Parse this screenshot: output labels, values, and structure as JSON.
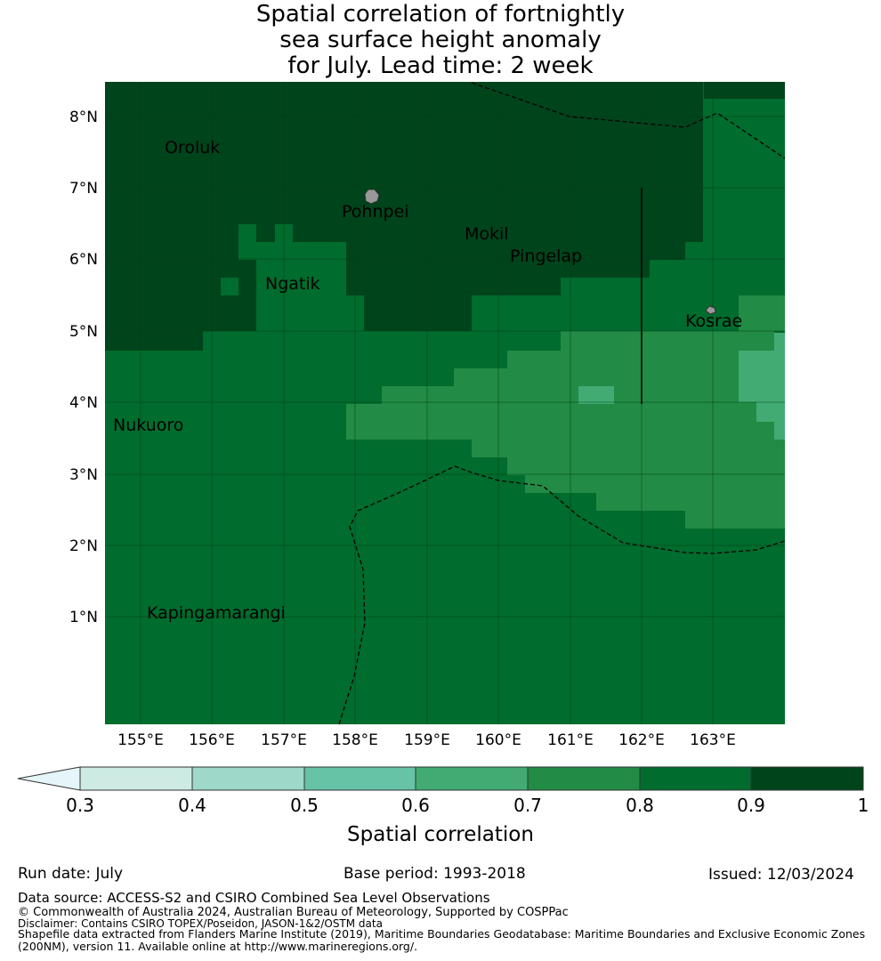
{
  "title": {
    "line1": "Spatial correlation of fortnightly",
    "line2": "sea surface height anomaly",
    "line3": "for July. Lead time: 2 week"
  },
  "map": {
    "lat_labels": [
      "8°N",
      "7°N",
      "6°N",
      "5°N",
      "4°N",
      "3°N",
      "2°N",
      "1°N"
    ],
    "lon_labels": [
      "155°E",
      "156°E",
      "157°E",
      "158°E",
      "159°E",
      "160°E",
      "161°E",
      "162°E",
      "163°E"
    ],
    "places": [
      "Oroluk",
      "Pohnpei",
      "Mokil",
      "Pingelap",
      "Ngatik",
      "Kosrae",
      "Nukuoro",
      "Kapingamarangi"
    ],
    "colors": {
      "c03": "#cdebe3",
      "c04": "#9dd8c8",
      "c05": "#66c3a5",
      "c06": "#41ab73",
      "c07": "#228b45",
      "c08": "#006c2d",
      "c09": "#00441b",
      "extend_low": "#e5f5f9"
    }
  },
  "colorbar": {
    "ticks": [
      "0.3",
      "0.4",
      "0.5",
      "0.6",
      "0.7",
      "0.8",
      "0.9",
      "1"
    ],
    "label": "Spatial correlation"
  },
  "footer": {
    "run_date": "Run date: July",
    "base_period": "Base period: 1993-2018",
    "issued": "Issued: 12/03/2024",
    "data_source": "Data source: ACCESS-S2 and CSIRO Combined Sea Level Observations",
    "copyright": "© Commonwealth of Australia 2024, Australian Bureau of Meteorology, Supported by COSPPac",
    "disclaimer": "Disclaimer: Contains CSIRO TOPEX/Poseidon, JASON-1&2/OSTM data",
    "shapefile_1": "Shapefile data extracted from Flanders Marine Institute (2019), Maritime Boundaries Geodatabase: Maritime Boundaries and Exclusive Economic Zones",
    "shapefile_2": "(200NM), version 11. Available online at http://www.marineregions.org/."
  }
}
